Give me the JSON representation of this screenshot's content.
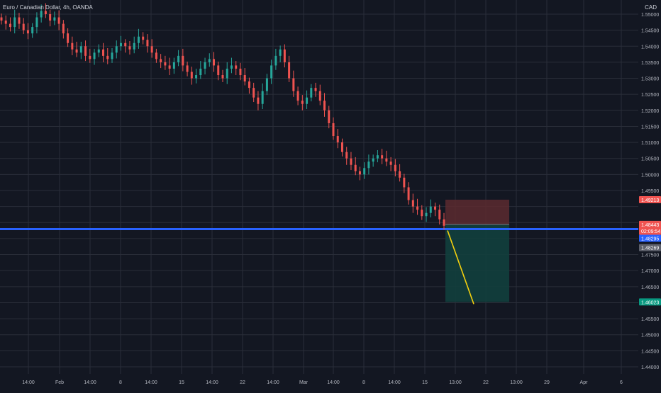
{
  "legend": {
    "symbol": "Euro / Canadian Dollar",
    "interval": "4h",
    "exchange": "OANDA"
  },
  "price_scale": {
    "currency": "CAD",
    "ticks": [
      "1.55000",
      "1.54500",
      "1.54000",
      "1.53500",
      "1.53000",
      "1.52500",
      "1.52000",
      "1.51500",
      "1.51000",
      "1.50500",
      "1.50000",
      "1.49500",
      "1.49000",
      "1.48500",
      "1.48000",
      "1.47500",
      "1.47000",
      "1.46500",
      "1.46000",
      "1.45500",
      "1.45000",
      "1.44500",
      "1.44000"
    ],
    "ticks_values": [
      1.55,
      1.545,
      1.54,
      1.535,
      1.53,
      1.525,
      1.52,
      1.515,
      1.51,
      1.505,
      1.5,
      1.495,
      1.49,
      1.485,
      1.48,
      1.475,
      1.47,
      1.465,
      1.46,
      1.455,
      1.45,
      1.445,
      1.44
    ]
  },
  "time_scale": {
    "ticks": [
      "14:00",
      "Feb",
      "14:00",
      "8",
      "14:00",
      "15",
      "14:00",
      "22",
      "14:00",
      "Mar",
      "14:00",
      "8",
      "14:00",
      "15",
      "13:00",
      "22",
      "13:00",
      "29",
      "Apr",
      "6"
    ]
  },
  "price_labels": {
    "stop_loss": "1.49213",
    "entry": "1.48443",
    "countdown": "02:09:54",
    "horizontal_line": "1.48295",
    "current_price": "1.48269",
    "take_profit": "1.46023"
  },
  "colors": {
    "background": "#131722",
    "grid": "#2a2e39",
    "up_candle": "#26a69a",
    "down_candle": "#ef5350",
    "horizontal_line": "#2962ff",
    "stop_zone": "#5c2a2f",
    "profit_zone": "#123f3d",
    "trend_line": "#f5d10e"
  },
  "chart_data": {
    "type": "candlestick",
    "title": "Euro / Canadian Dollar, 4h, OANDA",
    "xlabel": "",
    "ylabel": "",
    "ylim": [
      1.438,
      1.553
    ],
    "grid": true,
    "close_series": [
      1.548,
      1.547,
      1.546,
      1.549,
      1.547,
      1.545,
      1.544,
      1.546,
      1.549,
      1.551,
      1.55,
      1.548,
      1.549,
      1.547,
      1.544,
      1.541,
      1.539,
      1.538,
      1.54,
      1.537,
      1.536,
      1.538,
      1.539,
      1.537,
      1.536,
      1.538,
      1.54,
      1.541,
      1.54,
      1.539,
      1.541,
      1.543,
      1.542,
      1.54,
      1.538,
      1.536,
      1.535,
      1.534,
      1.533,
      1.535,
      1.537,
      1.534,
      1.532,
      1.53,
      1.531,
      1.533,
      1.535,
      1.536,
      1.534,
      1.531,
      1.53,
      1.533,
      1.534,
      1.533,
      1.531,
      1.529,
      1.527,
      1.524,
      1.522,
      1.526,
      1.53,
      1.534,
      1.537,
      1.539,
      1.535,
      1.53,
      1.526,
      1.523,
      1.522,
      1.524,
      1.527,
      1.526,
      1.523,
      1.52,
      1.516,
      1.512,
      1.51,
      1.507,
      1.505,
      1.503,
      1.501,
      1.5,
      1.502,
      1.504,
      1.505,
      1.506,
      1.505,
      1.504,
      1.503,
      1.501,
      1.499,
      1.496,
      1.492,
      1.49,
      1.489,
      1.487,
      1.488,
      1.49,
      1.489,
      1.486,
      1.484
    ],
    "position": {
      "entry": 1.48443,
      "stop_loss": 1.49213,
      "take_profit": 1.46023
    },
    "horizontal_line": 1.48295,
    "current_price": 1.48269
  }
}
